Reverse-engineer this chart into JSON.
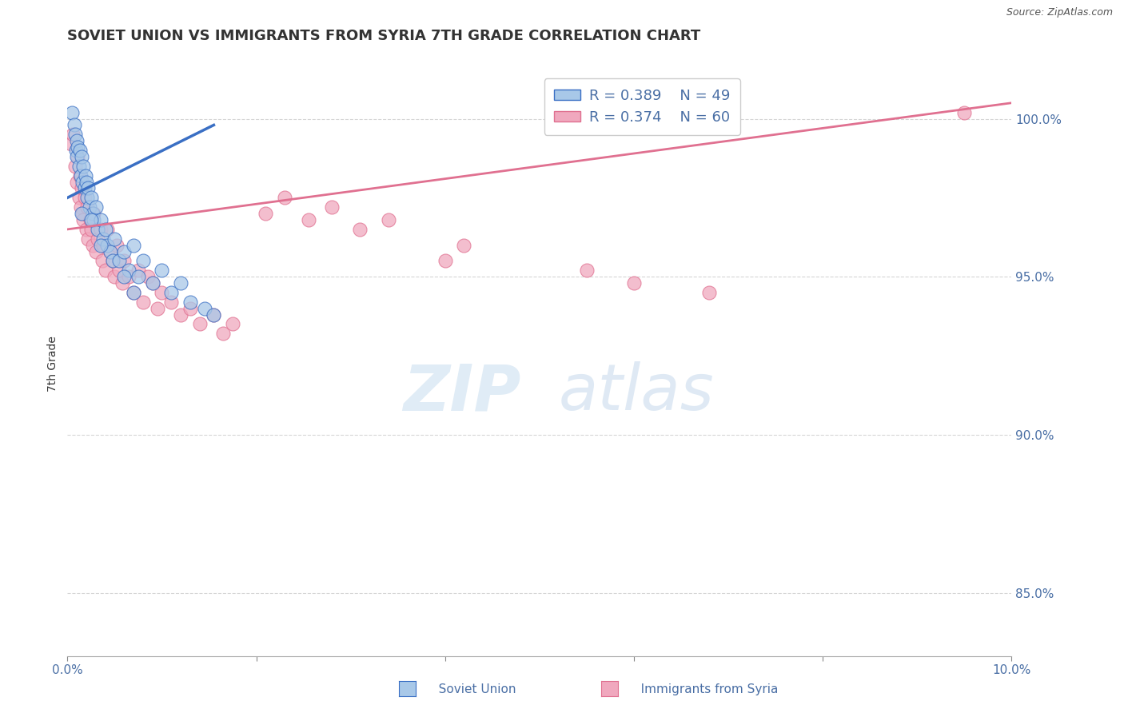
{
  "title": "SOVIET UNION VS IMMIGRANTS FROM SYRIA 7TH GRADE CORRELATION CHART",
  "source": "Source: ZipAtlas.com",
  "ylabel": "7th Grade",
  "xlim": [
    0.0,
    10.0
  ],
  "ylim": [
    83.0,
    101.5
  ],
  "xticks": [
    0.0,
    2.0,
    4.0,
    6.0,
    8.0,
    10.0
  ],
  "xtick_labels": [
    "0.0%",
    "",
    "",
    "",
    "",
    "10.0%"
  ],
  "ytick_positions": [
    85.0,
    90.0,
    95.0,
    100.0
  ],
  "ytick_labels": [
    "85.0%",
    "90.0%",
    "95.0%",
    "100.0%"
  ],
  "legend_entries": [
    {
      "label": "Soviet Union",
      "R": "0.389",
      "N": "49"
    },
    {
      "label": "Immigrants from Syria",
      "R": "0.374",
      "N": "60"
    }
  ],
  "blue_scatter_x": [
    0.05,
    0.07,
    0.08,
    0.09,
    0.1,
    0.1,
    0.11,
    0.12,
    0.13,
    0.14,
    0.15,
    0.16,
    0.17,
    0.18,
    0.19,
    0.2,
    0.21,
    0.22,
    0.23,
    0.25,
    0.27,
    0.28,
    0.3,
    0.32,
    0.35,
    0.38,
    0.4,
    0.42,
    0.45,
    0.48,
    0.5,
    0.55,
    0.6,
    0.65,
    0.7,
    0.75,
    0.8,
    0.9,
    1.0,
    1.1,
    1.2,
    1.3,
    1.45,
    0.15,
    0.25,
    0.35,
    0.6,
    0.7,
    1.55
  ],
  "blue_scatter_y": [
    100.2,
    99.8,
    99.5,
    99.0,
    99.3,
    98.8,
    99.1,
    98.5,
    99.0,
    98.2,
    98.8,
    98.0,
    98.5,
    97.8,
    98.2,
    98.0,
    97.5,
    97.8,
    97.2,
    97.5,
    97.0,
    96.8,
    97.2,
    96.5,
    96.8,
    96.2,
    96.5,
    96.0,
    95.8,
    95.5,
    96.2,
    95.5,
    95.8,
    95.2,
    96.0,
    95.0,
    95.5,
    94.8,
    95.2,
    94.5,
    94.8,
    94.2,
    94.0,
    97.0,
    96.8,
    96.0,
    95.0,
    94.5,
    93.8
  ],
  "pink_scatter_x": [
    0.04,
    0.06,
    0.08,
    0.1,
    0.11,
    0.12,
    0.13,
    0.14,
    0.15,
    0.16,
    0.17,
    0.18,
    0.2,
    0.21,
    0.22,
    0.24,
    0.25,
    0.27,
    0.28,
    0.3,
    0.32,
    0.35,
    0.37,
    0.38,
    0.4,
    0.42,
    0.45,
    0.48,
    0.5,
    0.52,
    0.55,
    0.58,
    0.6,
    0.65,
    0.7,
    0.75,
    0.8,
    0.85,
    0.9,
    0.95,
    1.0,
    1.1,
    1.2,
    1.3,
    1.4,
    1.55,
    1.65,
    1.75,
    2.1,
    2.3,
    2.55,
    2.8,
    3.1,
    3.4,
    4.0,
    4.2,
    5.5,
    6.0,
    6.8,
    9.5
  ],
  "pink_scatter_y": [
    99.2,
    99.5,
    98.5,
    98.0,
    98.8,
    97.5,
    98.2,
    97.2,
    97.8,
    97.0,
    96.8,
    97.5,
    96.5,
    97.2,
    96.2,
    96.8,
    96.5,
    96.0,
    97.0,
    95.8,
    96.2,
    96.5,
    95.5,
    96.0,
    95.2,
    96.5,
    95.8,
    95.5,
    95.0,
    96.0,
    95.2,
    94.8,
    95.5,
    95.0,
    94.5,
    95.2,
    94.2,
    95.0,
    94.8,
    94.0,
    94.5,
    94.2,
    93.8,
    94.0,
    93.5,
    93.8,
    93.2,
    93.5,
    97.0,
    97.5,
    96.8,
    97.2,
    96.5,
    96.8,
    95.5,
    96.0,
    95.2,
    94.8,
    94.5,
    100.2
  ],
  "blue_line_x": [
    0.0,
    1.55
  ],
  "blue_line_y": [
    97.5,
    99.8
  ],
  "pink_line_x": [
    0.0,
    10.0
  ],
  "pink_line_y": [
    96.5,
    100.5
  ],
  "blue_color": "#3a6fc4",
  "pink_color": "#e07090",
  "blue_fill": "#a8c8e8",
  "pink_fill": "#f0a8be",
  "grid_color": "#cccccc",
  "title_color": "#333333",
  "axis_color": "#4a6fa5",
  "title_fontsize": 13,
  "label_fontsize": 11
}
